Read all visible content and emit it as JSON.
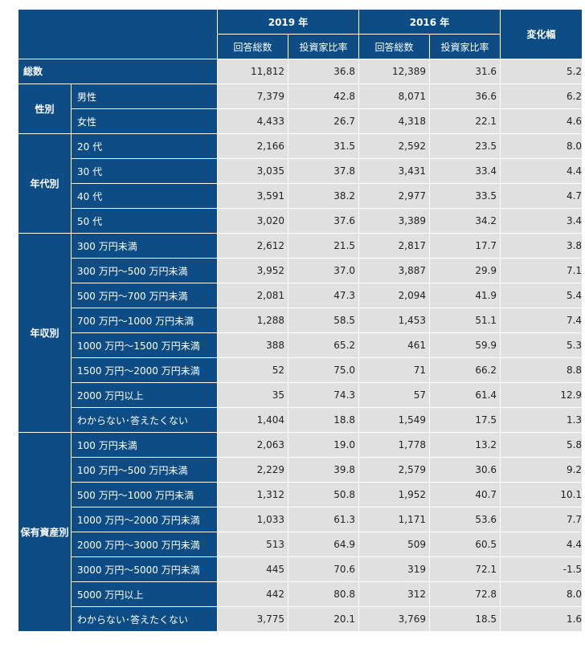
{
  "header": {
    "y2019": "2019 年",
    "y2016": "2016 年",
    "change": "変化幅",
    "total_label": "回答総数",
    "ratio_label": "投資家比率"
  },
  "total": {
    "label": "総数",
    "n2019": "11,812",
    "r2019": "36.8",
    "n2016": "12,389",
    "r2016": "31.6",
    "change": "5.2"
  },
  "groups": [
    {
      "label": "性別",
      "rows": [
        {
          "label": "男性",
          "n2019": "7,379",
          "r2019": "42.8",
          "n2016": "8,071",
          "r2016": "36.6",
          "change": "6.2"
        },
        {
          "label": "女性",
          "n2019": "4,433",
          "r2019": "26.7",
          "n2016": "4,318",
          "r2016": "22.1",
          "change": "4.6"
        }
      ]
    },
    {
      "label": "年代別",
      "rows": [
        {
          "label": "20 代",
          "n2019": "2,166",
          "r2019": "31.5",
          "n2016": "2,592",
          "r2016": "23.5",
          "change": "8.0"
        },
        {
          "label": "30 代",
          "n2019": "3,035",
          "r2019": "37.8",
          "n2016": "3,431",
          "r2016": "33.4",
          "change": "4.4"
        },
        {
          "label": "40 代",
          "n2019": "3,591",
          "r2019": "38.2",
          "n2016": "2,977",
          "r2016": "33.5",
          "change": "4.7"
        },
        {
          "label": "50 代",
          "n2019": "3,020",
          "r2019": "37.6",
          "n2016": "3,389",
          "r2016": "34.2",
          "change": "3.4"
        }
      ]
    },
    {
      "label": "年収別",
      "rows": [
        {
          "label": "300 万円未満",
          "n2019": "2,612",
          "r2019": "21.5",
          "n2016": "2,817",
          "r2016": "17.7",
          "change": "3.8"
        },
        {
          "label": "300 万円～500 万円未満",
          "n2019": "3,952",
          "r2019": "37.0",
          "n2016": "3,887",
          "r2016": "29.9",
          "change": "7.1"
        },
        {
          "label": "500 万円～700 万円未満",
          "n2019": "2,081",
          "r2019": "47.3",
          "n2016": "2,094",
          "r2016": "41.9",
          "change": "5.4"
        },
        {
          "label": "700 万円～1000 万円未満",
          "n2019": "1,288",
          "r2019": "58.5",
          "n2016": "1,453",
          "r2016": "51.1",
          "change": "7.4"
        },
        {
          "label": "1000 万円～1500 万円未満",
          "n2019": "388",
          "r2019": "65.2",
          "n2016": "461",
          "r2016": "59.9",
          "change": "5.3"
        },
        {
          "label": "1500 万円～2000 万円未満",
          "n2019": "52",
          "r2019": "75.0",
          "n2016": "71",
          "r2016": "66.2",
          "change": "8.8"
        },
        {
          "label": "2000 万円以上",
          "n2019": "35",
          "r2019": "74.3",
          "n2016": "57",
          "r2016": "61.4",
          "change": "12.9"
        },
        {
          "label": "わからない･答えたくない",
          "n2019": "1,404",
          "r2019": "18.8",
          "n2016": "1,549",
          "r2016": "17.5",
          "change": "1.3"
        }
      ]
    },
    {
      "label": "保有資産別",
      "rows": [
        {
          "label": "100 万円未満",
          "n2019": "2,063",
          "r2019": "19.0",
          "n2016": "1,778",
          "r2016": "13.2",
          "change": "5.8"
        },
        {
          "label": "100 万円～500 万円未満",
          "n2019": "2,229",
          "r2019": "39.8",
          "n2016": "2,579",
          "r2016": "30.6",
          "change": "9.2"
        },
        {
          "label": "500 万円～1000 万円未満",
          "n2019": "1,312",
          "r2019": "50.8",
          "n2016": "1,952",
          "r2016": "40.7",
          "change": "10.1"
        },
        {
          "label": "1000 万円～2000 万円未満",
          "n2019": "1,033",
          "r2019": "61.3",
          "n2016": "1,171",
          "r2016": "53.6",
          "change": "7.7"
        },
        {
          "label": "2000 万円～3000 万円未満",
          "n2019": "513",
          "r2019": "64.9",
          "n2016": "509",
          "r2016": "60.5",
          "change": "4.4"
        },
        {
          "label": "3000 万円～5000 万円未満",
          "n2019": "445",
          "r2019": "70.6",
          "n2016": "319",
          "r2016": "72.1",
          "change": "-1.5"
        },
        {
          "label": "5000 万円以上",
          "n2019": "442",
          "r2019": "80.8",
          "n2016": "312",
          "r2016": "72.8",
          "change": "8.0"
        },
        {
          "label": "わからない･答えたくない",
          "n2019": "3,775",
          "r2019": "20.1",
          "n2016": "3,769",
          "r2016": "18.5",
          "change": "1.6"
        }
      ]
    }
  ]
}
